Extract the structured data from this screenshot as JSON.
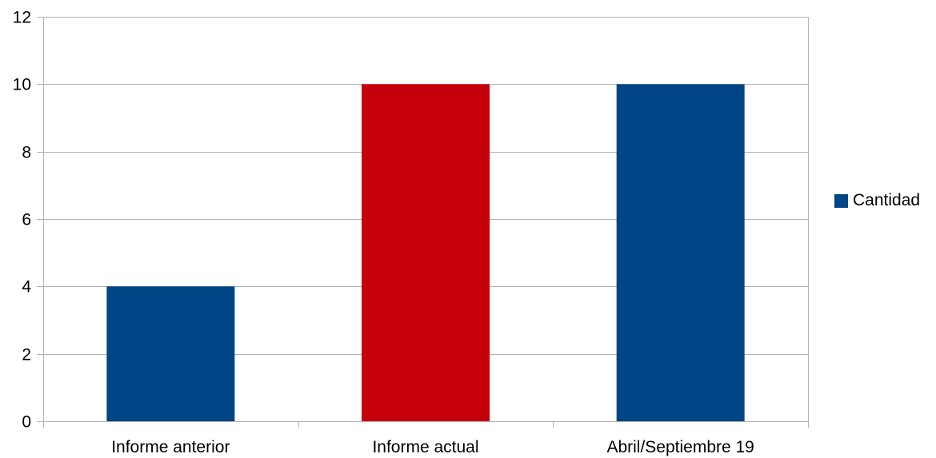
{
  "chart_data": {
    "type": "bar",
    "categories": [
      "Informe anterior",
      "Informe actual",
      "Abril/Septiembre 19"
    ],
    "series": [
      {
        "name": "Cantidad",
        "values": [
          4,
          10,
          10
        ],
        "color": "#004586"
      }
    ],
    "bar_colors": [
      "#004586",
      "#c5000b",
      "#004586"
    ],
    "ylim": [
      0,
      12
    ],
    "yticks": [
      "0",
      "2",
      "4",
      "6",
      "8",
      "10",
      "12"
    ],
    "grid": true,
    "legend_position": "right",
    "title": "",
    "xlabel": "",
    "ylabel": ""
  }
}
